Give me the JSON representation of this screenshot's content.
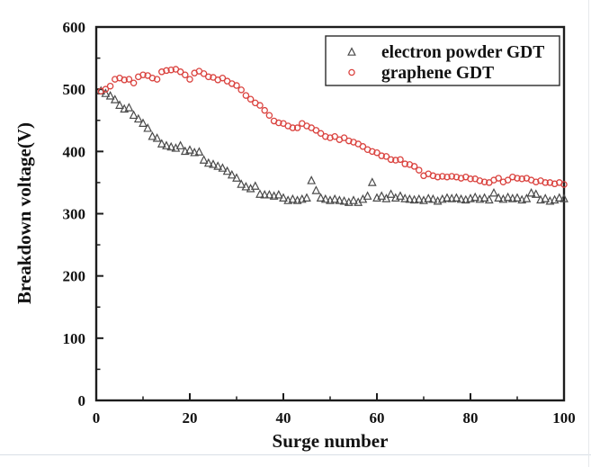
{
  "page": {
    "background": "#ffffff",
    "edge_line_color": "#d9dfe6"
  },
  "chart_data": {
    "type": "scatter",
    "title": "",
    "xlabel": "Surge number",
    "ylabel": "Breakdown voltage(V)",
    "xlim": [
      0,
      100
    ],
    "ylim": [
      0,
      600
    ],
    "grid": false,
    "legend_position": "top-right",
    "axis_color": "#1c1c1c",
    "x_major_ticks": [
      0,
      20,
      40,
      60,
      80,
      100
    ],
    "x_minor_ticks": [
      10,
      30,
      50,
      70,
      90
    ],
    "y_major_ticks": [
      0,
      100,
      200,
      300,
      400,
      500,
      600
    ],
    "y_minor_ticks": [
      50,
      150,
      250,
      350,
      450,
      550
    ],
    "x": [
      1,
      2,
      3,
      4,
      5,
      6,
      7,
      8,
      9,
      10,
      11,
      12,
      13,
      14,
      15,
      16,
      17,
      18,
      19,
      20,
      21,
      22,
      23,
      24,
      25,
      26,
      27,
      28,
      29,
      30,
      31,
      32,
      33,
      34,
      35,
      36,
      37,
      38,
      39,
      40,
      41,
      42,
      43,
      44,
      45,
      46,
      47,
      48,
      49,
      50,
      51,
      52,
      53,
      54,
      55,
      56,
      57,
      58,
      59,
      60,
      61,
      62,
      63,
      64,
      65,
      66,
      67,
      68,
      69,
      70,
      71,
      72,
      73,
      74,
      75,
      76,
      77,
      78,
      79,
      80,
      81,
      82,
      83,
      84,
      85,
      86,
      87,
      88,
      89,
      90,
      91,
      92,
      93,
      94,
      95,
      96,
      97,
      98,
      99,
      100
    ],
    "series": [
      {
        "name": "electron powder GDT",
        "marker": "triangle",
        "color": "#4a4a4a",
        "values": [
          497,
          493,
          489,
          483,
          474,
          468,
          470,
          458,
          452,
          445,
          437,
          424,
          421,
          412,
          409,
          407,
          405,
          409,
          400,
          402,
          398,
          399,
          386,
          381,
          379,
          376,
          373,
          368,
          362,
          357,
          347,
          343,
          340,
          344,
          331,
          330,
          330,
          328,
          330,
          325,
          321,
          323,
          321,
          323,
          325,
          353,
          337,
          325,
          323,
          321,
          323,
          321,
          320,
          318,
          321,
          318,
          323,
          328,
          350,
          325,
          328,
          324,
          331,
          325,
          328,
          324,
          323,
          322,
          323,
          321,
          324,
          323,
          320,
          323,
          325,
          324,
          325,
          323,
          322,
          324,
          326,
          323,
          325,
          322,
          333,
          325,
          323,
          326,
          324,
          325,
          322,
          324,
          333,
          331,
          322,
          324,
          320,
          322,
          325,
          324
        ]
      },
      {
        "name": "graphene GDT",
        "marker": "circle",
        "color": "#da423e",
        "values": [
          497,
          500,
          505,
          516,
          518,
          515,
          516,
          510,
          520,
          523,
          522,
          518,
          516,
          528,
          530,
          531,
          532,
          528,
          523,
          516,
          526,
          529,
          525,
          520,
          519,
          515,
          518,
          513,
          509,
          506,
          499,
          490,
          484,
          478,
          474,
          466,
          458,
          449,
          446,
          445,
          441,
          438,
          438,
          445,
          441,
          438,
          434,
          429,
          424,
          422,
          424,
          419,
          422,
          417,
          415,
          412,
          408,
          403,
          400,
          398,
          393,
          392,
          387,
          386,
          387,
          380,
          379,
          376,
          370,
          361,
          364,
          361,
          359,
          360,
          359,
          360,
          359,
          357,
          359,
          356,
          356,
          353,
          351,
          350,
          354,
          357,
          351,
          354,
          359,
          357,
          356,
          357,
          354,
          351,
          353,
          350,
          350,
          348,
          350,
          347
        ]
      }
    ]
  }
}
